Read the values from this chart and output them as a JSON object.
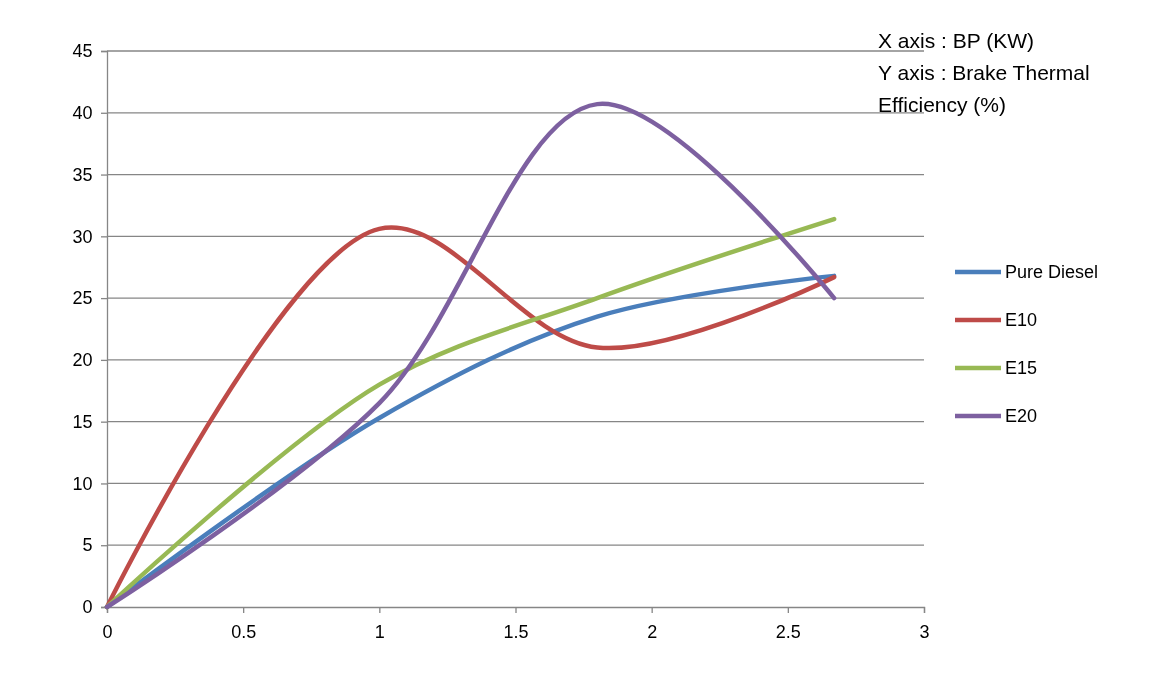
{
  "chart_data": {
    "type": "line",
    "x": [
      0,
      1,
      1.8,
      2.67
    ],
    "series": [
      {
        "name": "Pure Diesel",
        "color": "#4a7ebb",
        "values": [
          0,
          15.3,
          23.5,
          26.8
        ]
      },
      {
        "name": "E10",
        "color": "#be4b48",
        "values": [
          0,
          30.6,
          21,
          26.7
        ]
      },
      {
        "name": "E15",
        "color": "#98b954",
        "values": [
          0,
          18,
          25,
          31.4
        ]
      },
      {
        "name": "E20",
        "color": "#7d60a0",
        "values": [
          0,
          16.5,
          40.7,
          25
        ]
      }
    ],
    "xlim": [
      0,
      3
    ],
    "xticks": [
      0,
      0.5,
      1,
      1.5,
      2,
      2.5,
      3
    ],
    "ylim": [
      0,
      45
    ],
    "yticks": [
      0,
      5,
      10,
      15,
      20,
      25,
      30,
      35,
      40,
      45
    ],
    "grid": "y",
    "legend": "right",
    "marker": "none",
    "line_style": "solid",
    "annotations": [
      "X axis : BP (KW)",
      "Y axis : Brake Thermal Efficiency  (%)"
    ]
  }
}
